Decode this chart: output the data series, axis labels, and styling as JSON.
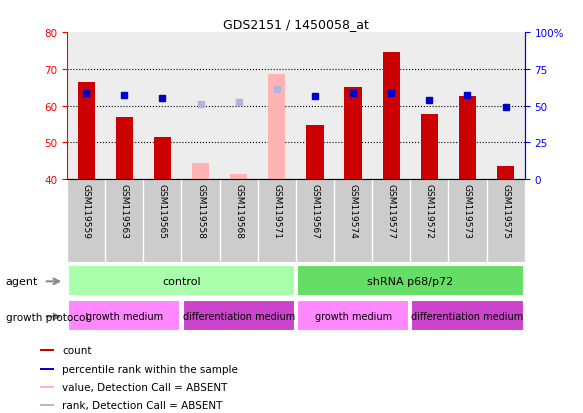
{
  "title": "GDS2151 / 1450058_at",
  "samples": [
    "GSM119559",
    "GSM119563",
    "GSM119565",
    "GSM119558",
    "GSM119568",
    "GSM119571",
    "GSM119567",
    "GSM119574",
    "GSM119577",
    "GSM119572",
    "GSM119573",
    "GSM119575"
  ],
  "count_values": [
    66.5,
    56.8,
    51.5,
    null,
    null,
    null,
    54.8,
    65.0,
    74.5,
    57.8,
    62.5,
    43.5
  ],
  "count_absent": [
    null,
    null,
    null,
    44.5,
    41.5,
    68.5,
    null,
    null,
    null,
    null,
    null,
    null
  ],
  "percentile_values": [
    63.5,
    63.0,
    62.0,
    null,
    null,
    null,
    62.5,
    63.5,
    63.5,
    61.5,
    63.0,
    59.5
  ],
  "percentile_absent": [
    null,
    null,
    null,
    60.5,
    61.0,
    64.5,
    null,
    null,
    null,
    null,
    null,
    null
  ],
  "left_ylim": [
    40,
    80
  ],
  "left_yticks": [
    40,
    50,
    60,
    70,
    80
  ],
  "count_color": "#cc0000",
  "count_absent_color": "#ffb3b3",
  "percentile_color": "#0000cc",
  "percentile_absent_color": "#b3b3dd",
  "bar_bottom": 40,
  "agent_groups": [
    {
      "label": "control",
      "start": 0,
      "end": 6,
      "color": "#aaffaa"
    },
    {
      "label": "shRNA p68/p72",
      "start": 6,
      "end": 12,
      "color": "#66dd66"
    }
  ],
  "growth_groups": [
    {
      "label": "growth medium",
      "start": 0,
      "end": 3,
      "color": "#ff88ff"
    },
    {
      "label": "differentiation medium",
      "start": 3,
      "end": 6,
      "color": "#cc44cc"
    },
    {
      "label": "growth medium",
      "start": 6,
      "end": 9,
      "color": "#ff88ff"
    },
    {
      "label": "differentiation medium",
      "start": 9,
      "end": 12,
      "color": "#cc44cc"
    }
  ],
  "legend_items": [
    {
      "label": "count",
      "color": "#cc0000",
      "type": "square"
    },
    {
      "label": "percentile rank within the sample",
      "color": "#0000cc",
      "type": "square"
    },
    {
      "label": "value, Detection Call = ABSENT",
      "color": "#ffb3b3",
      "type": "square"
    },
    {
      "label": "rank, Detection Call = ABSENT",
      "color": "#b3b3dd",
      "type": "square"
    }
  ],
  "bar_width": 0.45,
  "sample_col_color": "#cccccc",
  "plot_bg_color": "#ffffff"
}
